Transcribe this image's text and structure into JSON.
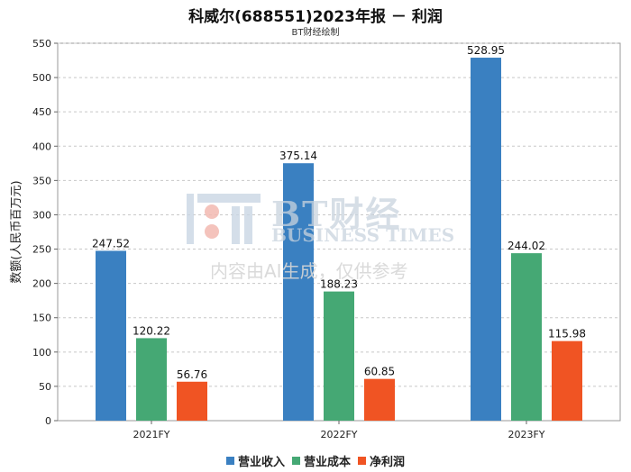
{
  "chart_data": {
    "type": "bar",
    "title": "科威尔(688551)2023年报 － 利润",
    "subtitle": "BT财经绘制",
    "ylabel": "数额(人民币百万元)",
    "xlabel": "",
    "categories": [
      "2021FY",
      "2022FY",
      "2023FY"
    ],
    "ylim": [
      0,
      550
    ],
    "yticks": [
      0,
      50,
      100,
      150,
      200,
      250,
      300,
      350,
      400,
      450,
      500,
      550
    ],
    "grid": true,
    "legend_position": "bottom",
    "series": [
      {
        "name": "营业收入",
        "color": "#3a80c1",
        "values": [
          247.52,
          375.14,
          528.95
        ]
      },
      {
        "name": "营业成本",
        "color": "#45a874",
        "values": [
          120.22,
          188.23,
          244.02
        ]
      },
      {
        "name": "净利润",
        "color": "#f05423",
        "values": [
          56.76,
          60.85,
          115.98
        ]
      }
    ]
  },
  "watermark": {
    "brand": "BT财经",
    "brand_en": "BUSINESS TIMES",
    "note": "内容由AI生成，仅供参考"
  }
}
